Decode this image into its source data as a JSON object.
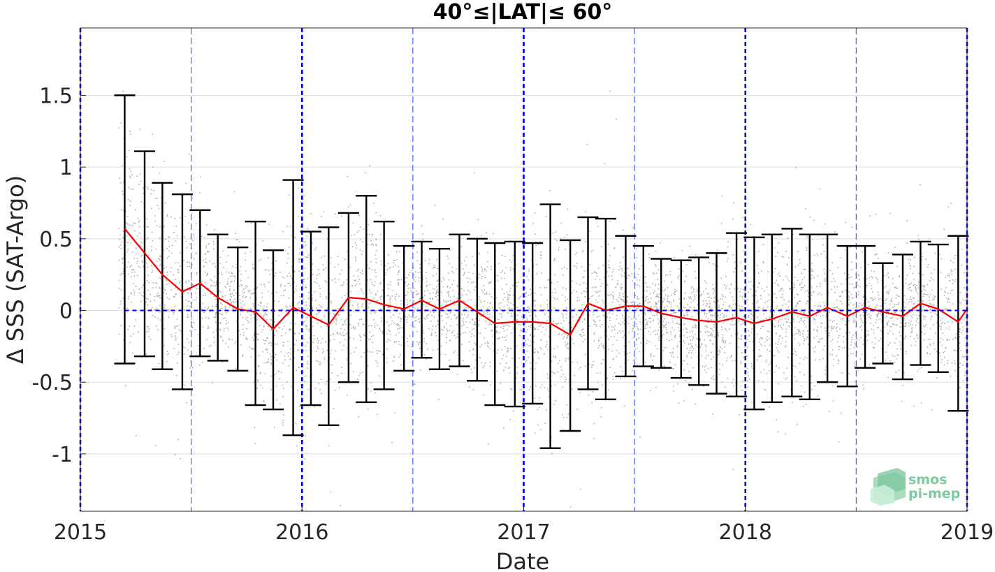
{
  "chart_data": {
    "type": "scatter",
    "title": "40°≤|LAT|≤ 60°",
    "xlabel": "Date",
    "ylabel": "Δ SSS (SAT-Argo)",
    "xlim": [
      2015.0,
      2019.0
    ],
    "ylim": [
      -1.4,
      1.97
    ],
    "xticks": [
      2015,
      2016,
      2017,
      2018,
      2019
    ],
    "xtick_labels": [
      "2015",
      "2016",
      "2017",
      "2018",
      "2019"
    ],
    "yticks": [
      -1,
      -0.5,
      0,
      0.5,
      1,
      1.5
    ],
    "ytick_labels": [
      "-1",
      "-0.5",
      "0",
      "0.5",
      "1",
      "1.5"
    ],
    "grid": true,
    "reference_line": {
      "y": 0,
      "style": "dashed",
      "color": "#0000ff"
    },
    "year_lines": {
      "x": [
        2015,
        2016,
        2017,
        2018,
        2019
      ],
      "style": "dashed",
      "color": "#0000ff"
    },
    "half_year_lines": {
      "x": [
        2015.5,
        2016.5,
        2017.5,
        2018.5
      ],
      "style": "dashed",
      "color": "#4a5cff"
    },
    "scatter_color": "#8c8c8c",
    "series": [
      {
        "style": "line",
        "color": "#ff0000",
        "x": [
          2015.2,
          2015.29,
          2015.37,
          2015.46,
          2015.54,
          2015.62,
          2015.71,
          2015.79,
          2015.87,
          2015.96,
          2016.04,
          2016.12,
          2016.21,
          2016.29,
          2016.37,
          2016.46,
          2016.54,
          2016.62,
          2016.71,
          2016.79,
          2016.87,
          2016.96,
          2017.04,
          2017.12,
          2017.21,
          2017.29,
          2017.37,
          2017.46,
          2017.54,
          2017.62,
          2017.71,
          2017.79,
          2017.87,
          2017.96,
          2018.04,
          2018.12,
          2018.21,
          2018.29,
          2018.37,
          2018.46,
          2018.54,
          2018.62,
          2018.71,
          2018.79,
          2018.87,
          2018.96,
          2019.0
        ],
        "y": [
          0.57,
          0.4,
          0.25,
          0.13,
          0.19,
          0.09,
          0.01,
          -0.01,
          -0.13,
          0.02,
          -0.04,
          -0.1,
          0.09,
          0.08,
          0.04,
          0.01,
          0.07,
          0.01,
          0.07,
          -0.01,
          -0.09,
          -0.08,
          -0.08,
          -0.09,
          -0.17,
          0.05,
          0.0,
          0.03,
          0.03,
          -0.02,
          -0.05,
          -0.07,
          -0.08,
          -0.05,
          -0.09,
          -0.06,
          -0.01,
          -0.04,
          0.02,
          -0.04,
          0.02,
          -0.01,
          -0.04,
          0.05,
          0.01,
          -0.08,
          0.01
        ]
      },
      {
        "style": "errorbar",
        "color": "#000000",
        "x": [
          2015.2,
          2015.29,
          2015.37,
          2015.46,
          2015.54,
          2015.62,
          2015.71,
          2015.79,
          2015.87,
          2015.96,
          2016.04,
          2016.12,
          2016.21,
          2016.29,
          2016.37,
          2016.46,
          2016.54,
          2016.62,
          2016.71,
          2016.79,
          2016.87,
          2016.96,
          2017.04,
          2017.12,
          2017.21,
          2017.29,
          2017.37,
          2017.46,
          2017.54,
          2017.62,
          2017.71,
          2017.79,
          2017.87,
          2017.96,
          2018.04,
          2018.12,
          2018.21,
          2018.29,
          2018.37,
          2018.46,
          2018.54,
          2018.62,
          2018.71,
          2018.79,
          2018.87,
          2018.96
        ],
        "upper": [
          1.5,
          1.11,
          0.89,
          0.81,
          0.7,
          0.53,
          0.44,
          0.62,
          0.42,
          0.91,
          0.55,
          0.58,
          0.68,
          0.8,
          0.62,
          0.45,
          0.48,
          0.43,
          0.53,
          0.5,
          0.47,
          0.48,
          0.47,
          0.74,
          0.49,
          0.65,
          0.64,
          0.52,
          0.45,
          0.36,
          0.35,
          0.37,
          0.4,
          0.54,
          0.51,
          0.53,
          0.57,
          0.53,
          0.53,
          0.45,
          0.45,
          0.33,
          0.39,
          0.48,
          0.46,
          0.52
        ],
        "lower": [
          -0.37,
          -0.32,
          -0.41,
          -0.55,
          -0.32,
          -0.35,
          -0.42,
          -0.66,
          -0.69,
          -0.87,
          -0.66,
          -0.8,
          -0.5,
          -0.64,
          -0.55,
          -0.42,
          -0.33,
          -0.41,
          -0.39,
          -0.49,
          -0.66,
          -0.67,
          -0.65,
          -0.96,
          -0.84,
          -0.55,
          -0.62,
          -0.46,
          -0.39,
          -0.4,
          -0.47,
          -0.52,
          -0.58,
          -0.6,
          -0.69,
          -0.64,
          -0.6,
          -0.62,
          -0.5,
          -0.53,
          -0.4,
          -0.37,
          -0.48,
          -0.38,
          -0.43,
          -0.7
        ]
      }
    ]
  },
  "logo": {
    "line1": "smos",
    "line2": "pi-mep"
  }
}
